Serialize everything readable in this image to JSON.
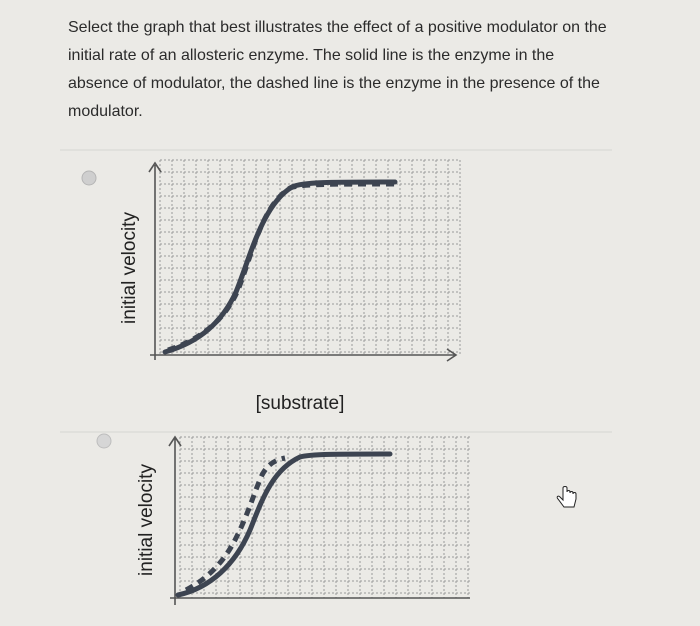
{
  "question": "Select the graph that best illustrates the effect of a positive modulator on the initial rate of an allosteric enzyme. The solid line is the enzyme in the absence of modulator, the dashed line is the enzyme in the presence of the modulator.",
  "options": [
    {
      "y_label": "initial velocity",
      "x_label": "[substrate]"
    },
    {
      "y_label": "initial velocity"
    }
  ]
}
